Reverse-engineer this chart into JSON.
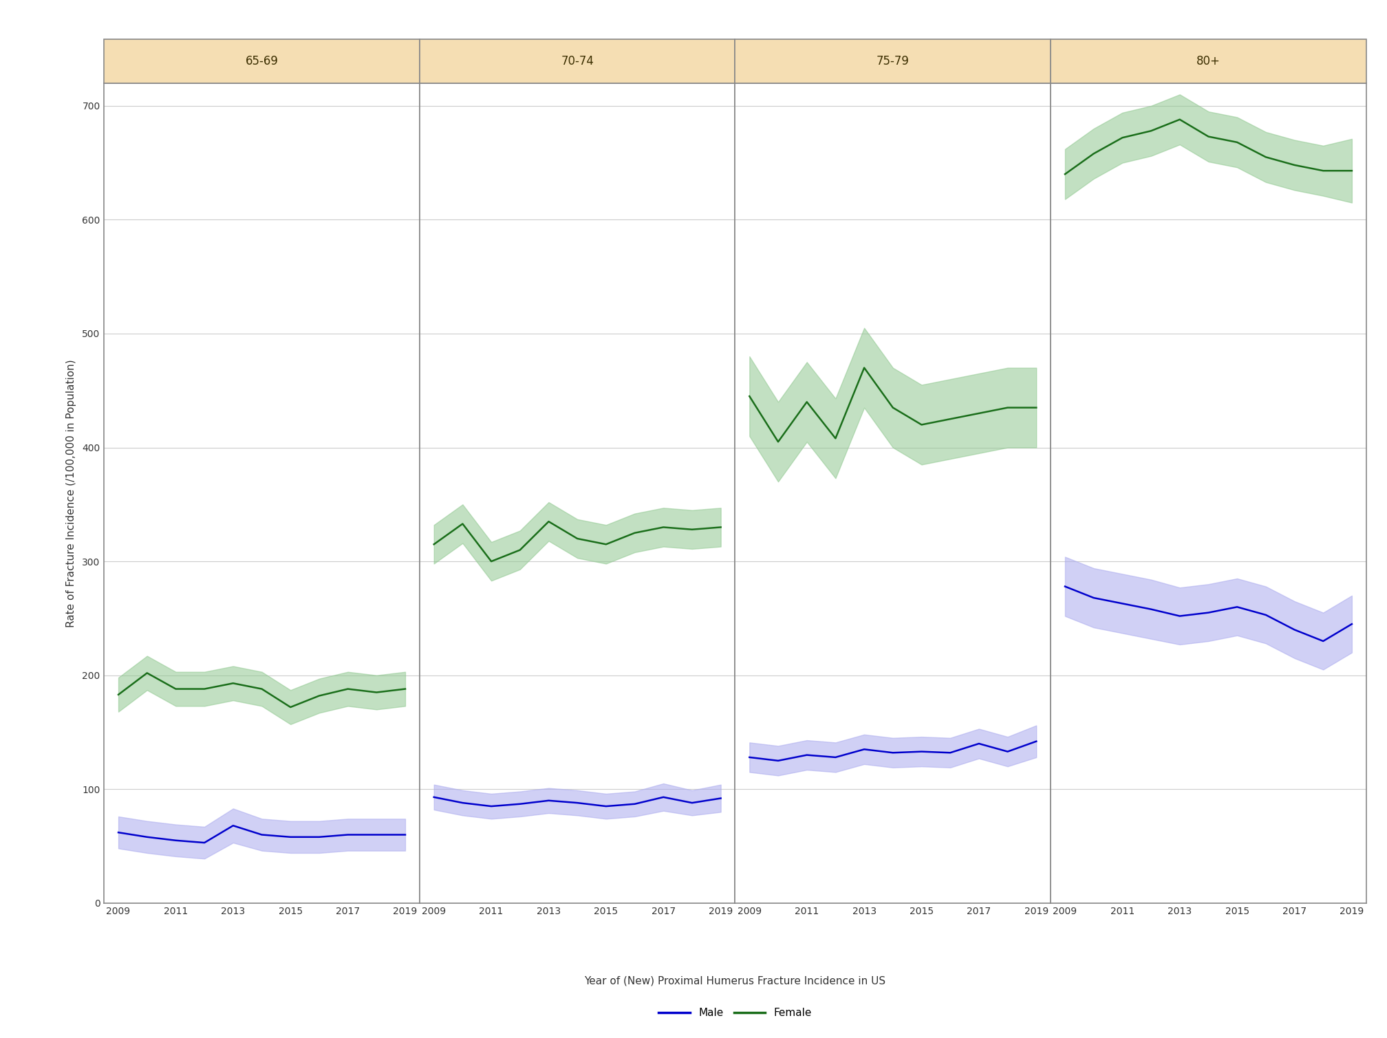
{
  "years": [
    2009,
    2010,
    2011,
    2012,
    2013,
    2014,
    2015,
    2016,
    2017,
    2018,
    2019
  ],
  "panels": [
    "65-69",
    "70-74",
    "75-79",
    "80+"
  ],
  "male_mean": [
    [
      62,
      58,
      55,
      53,
      68,
      60,
      58,
      58,
      60,
      60,
      60
    ],
    [
      93,
      88,
      85,
      87,
      90,
      88,
      85,
      87,
      93,
      88,
      92
    ],
    [
      128,
      125,
      130,
      128,
      135,
      132,
      133,
      132,
      140,
      133,
      142
    ],
    [
      278,
      268,
      263,
      258,
      252,
      255,
      260,
      253,
      240,
      230,
      245
    ]
  ],
  "male_lo": [
    [
      48,
      44,
      41,
      39,
      53,
      46,
      44,
      44,
      46,
      46,
      46
    ],
    [
      82,
      77,
      74,
      76,
      79,
      77,
      74,
      76,
      81,
      77,
      80
    ],
    [
      115,
      112,
      117,
      115,
      122,
      119,
      120,
      119,
      127,
      120,
      128
    ],
    [
      252,
      242,
      237,
      232,
      227,
      230,
      235,
      228,
      215,
      205,
      220
    ]
  ],
  "male_hi": [
    [
      76,
      72,
      69,
      67,
      83,
      74,
      72,
      72,
      74,
      74,
      74
    ],
    [
      104,
      99,
      96,
      98,
      101,
      99,
      96,
      98,
      105,
      99,
      104
    ],
    [
      141,
      138,
      143,
      141,
      148,
      145,
      146,
      145,
      153,
      146,
      156
    ],
    [
      304,
      294,
      289,
      284,
      277,
      280,
      285,
      278,
      265,
      255,
      270
    ]
  ],
  "female_mean": [
    [
      183,
      202,
      188,
      188,
      193,
      188,
      172,
      182,
      188,
      185,
      188
    ],
    [
      315,
      333,
      300,
      310,
      335,
      320,
      315,
      325,
      330,
      328,
      330
    ],
    [
      445,
      405,
      440,
      408,
      470,
      435,
      420,
      425,
      430,
      435,
      435
    ],
    [
      640,
      658,
      672,
      678,
      688,
      673,
      668,
      655,
      648,
      643,
      643
    ]
  ],
  "female_lo": [
    [
      168,
      187,
      173,
      173,
      178,
      173,
      157,
      167,
      173,
      170,
      173
    ],
    [
      298,
      316,
      283,
      293,
      318,
      303,
      298,
      308,
      313,
      311,
      313
    ],
    [
      410,
      370,
      405,
      373,
      435,
      400,
      385,
      390,
      395,
      400,
      400
    ],
    [
      618,
      636,
      650,
      656,
      666,
      651,
      646,
      633,
      626,
      621,
      615
    ]
  ],
  "female_hi": [
    [
      198,
      217,
      203,
      203,
      208,
      203,
      187,
      197,
      203,
      200,
      203
    ],
    [
      332,
      350,
      317,
      327,
      352,
      337,
      332,
      342,
      347,
      345,
      347
    ],
    [
      480,
      440,
      475,
      443,
      505,
      470,
      455,
      460,
      465,
      470,
      470
    ],
    [
      662,
      680,
      694,
      700,
      710,
      695,
      690,
      677,
      670,
      665,
      671
    ]
  ],
  "ylim": [
    0,
    720
  ],
  "yticks": [
    0,
    100,
    200,
    300,
    400,
    500,
    600,
    700
  ],
  "xticks": [
    2009,
    2011,
    2013,
    2015,
    2017,
    2019
  ],
  "xlabel": "Year of (New) Proximal Humerus Fracture Incidence in US",
  "ylabel": "Rate of Fracture Incidence (/100,000 in Population)",
  "male_color": "#0000CC",
  "female_color": "#1A6E1A",
  "male_fill_color": "#AAAAEE",
  "female_fill_color": "#90C890",
  "panel_header_color": "#F5DEB3",
  "panel_header_text_color": "#3B2E00",
  "panel_border_color": "#888888",
  "grid_color": "#CCCCCC",
  "background_color": "#FFFFFF",
  "outer_background": "#FFFFFF",
  "line_width": 1.8,
  "fill_alpha": 0.55,
  "legend_male_label": "Male",
  "legend_female_label": "Female"
}
